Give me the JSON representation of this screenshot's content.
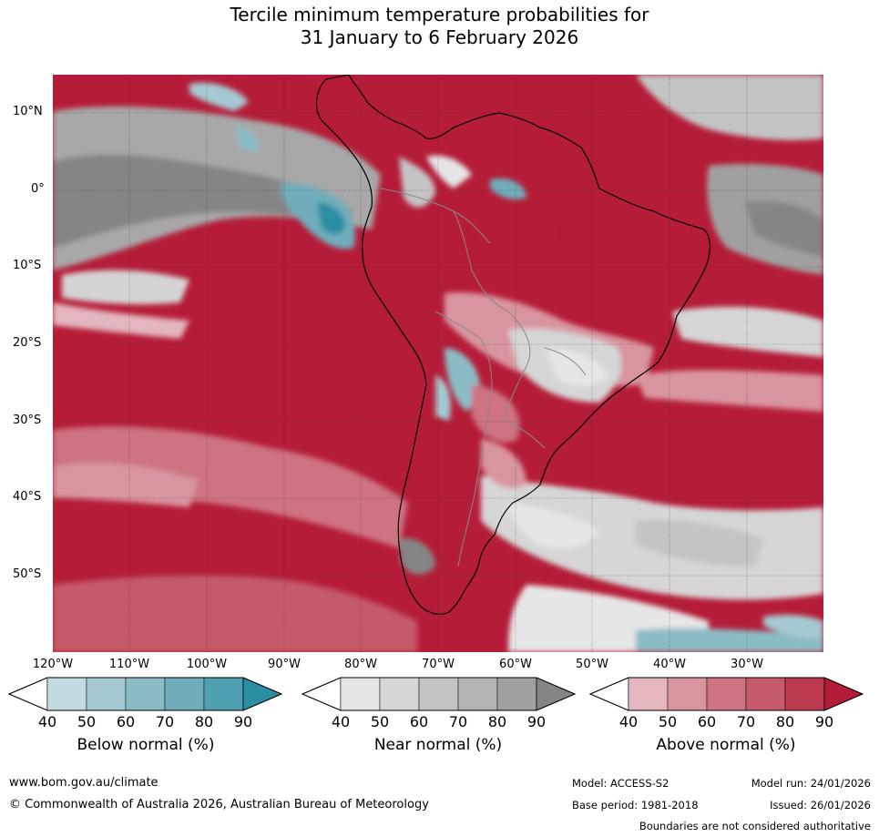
{
  "title": {
    "line1": "Tercile minimum temperature probabilities for",
    "line2": "31 January to 6 February 2026"
  },
  "map": {
    "lat_labels": [
      "10°N",
      "0°",
      "10°S",
      "20°S",
      "30°S",
      "40°S",
      "50°S"
    ],
    "lon_labels": [
      "120°W",
      "110°W",
      "100°W",
      "90°W",
      "80°W",
      "70°W",
      "60°W",
      "50°W",
      "40°W",
      "30°W"
    ],
    "colors": {
      "ocean_above": "#b51c38",
      "land_outline": "#000000",
      "border_outline": "#888888",
      "grid": "#333333"
    }
  },
  "colorbars": [
    {
      "name": "Below normal (%)",
      "ticks": [
        "40",
        "50",
        "60",
        "70",
        "80",
        "90"
      ],
      "colors": [
        "#c3dae0",
        "#a6c9d1",
        "#8bbcc6",
        "#6fadbb",
        "#4fa1b2",
        "#2b8fa2"
      ]
    },
    {
      "name": "Near normal (%)",
      "ticks": [
        "40",
        "50",
        "60",
        "70",
        "80",
        "90"
      ],
      "colors": [
        "#e6e6e6",
        "#d6d6d6",
        "#c4c4c4",
        "#b4b4b4",
        "#a0a0a0",
        "#858585"
      ]
    },
    {
      "name": "Above normal (%)",
      "ticks": [
        "40",
        "50",
        "60",
        "70",
        "80",
        "90"
      ],
      "colors": [
        "#e4b6bd",
        "#d9959f",
        "#cd7381",
        "#c45a6a",
        "#bc3a50",
        "#b51c38"
      ]
    }
  ],
  "footer": {
    "url": "www.bom.gov.au/climate",
    "copyright": "© Commonwealth of Australia 2026, Australian Bureau of Meteorology",
    "model": "Model: ACCESS-S2",
    "base_period": "Base period: 1981-2018",
    "model_run": "Model run: 24/01/2026",
    "issued": "Issued: 26/01/2026",
    "disclaimer": "Boundaries are not considered authoritative"
  }
}
